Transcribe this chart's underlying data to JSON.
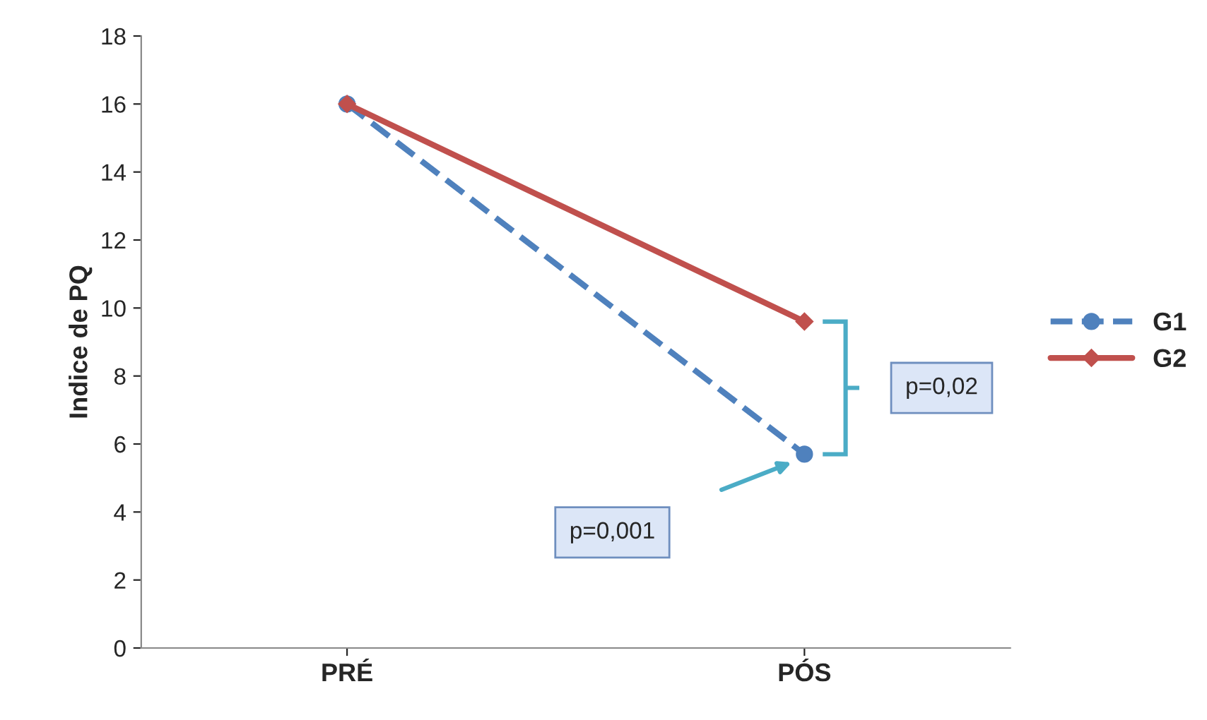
{
  "chart_data": {
    "type": "line",
    "ylabel": "Indice de PQ",
    "categories": [
      "PRÉ",
      "PÓS"
    ],
    "series": [
      {
        "name": "G1",
        "color": "#4f81bd",
        "values": [
          16.0,
          5.7
        ],
        "marker": "circle",
        "line_style": "dashed"
      },
      {
        "name": "G2",
        "color": "#c0504d",
        "values": [
          16.0,
          9.6
        ],
        "marker": "diamond",
        "line_style": "solid"
      }
    ],
    "ylim": [
      0,
      18
    ],
    "yticks": [
      0,
      2,
      4,
      6,
      8,
      10,
      12,
      14,
      16,
      18
    ],
    "grid": false,
    "legend": "right",
    "annotations": [
      "p=0,001",
      "p=0,02"
    ]
  }
}
